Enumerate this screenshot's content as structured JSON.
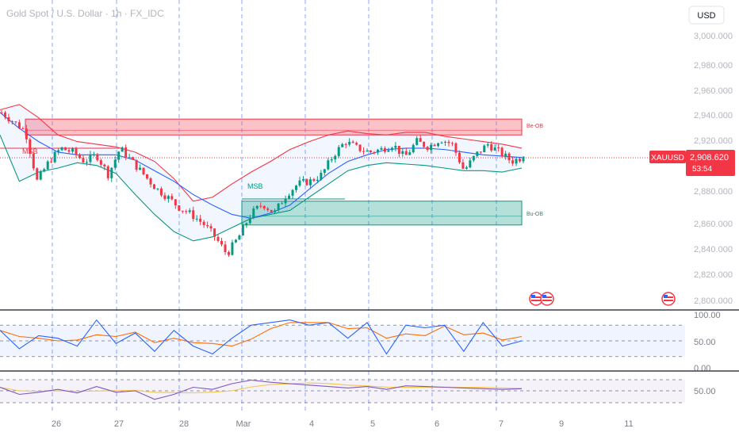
{
  "header": {
    "title": "Gold Spot / U.S. Dollar · 1h · FX_IDC",
    "currency_label": "USD"
  },
  "colors": {
    "up": "#089981",
    "down": "#f23645",
    "basis": "#2962ff",
    "upper": "#f23645",
    "lower": "#089981",
    "grid_v": "#2962ff",
    "stoch_k": "#2962ff",
    "stoch_d": "#ff6d00",
    "rsi": "#7e57c2",
    "rsi_ma": "#f7c548"
  },
  "price_axis": {
    "ticks": [
      "3,000.000",
      "2,980.000",
      "2,960.000",
      "2,940.000",
      "2,920.000",
      "2,900.000",
      "2,880.000",
      "2,860.000",
      "2,840.000",
      "2,820.000",
      "2,800.000"
    ],
    "range": [
      2793,
      3008
    ]
  },
  "x_axis": {
    "labels": [
      "26",
      "27",
      "28",
      "Mar",
      "4",
      "5",
      "6",
      "7",
      "9",
      "11"
    ]
  },
  "price_badge": {
    "symbol": "XAUUSD",
    "price": "2,908.620",
    "countdown": "53:54",
    "value": 2908.62
  },
  "zones": [
    {
      "label": "Be-OB",
      "top": 2937,
      "bottom": 2925,
      "color": "red"
    },
    {
      "label": "Bu-OB",
      "top": 2875,
      "bottom": 2857,
      "color": "green"
    }
  ],
  "annotations": {
    "msb_left": "MSB",
    "msb_mid": "MSB"
  },
  "stochastic": {
    "ticks": [
      "100.00",
      "50.00",
      "0.00"
    ]
  },
  "rsi": {
    "ticks": [
      "50.00"
    ]
  },
  "chart_data": {
    "type": "candlestick",
    "title": "Gold Spot / U.S. Dollar · 1h · FX_IDC",
    "symbol": "XAUUSD",
    "ylim": [
      2793,
      3008
    ],
    "x_labels": [
      "26",
      "27",
      "28",
      "Mar",
      "4",
      "5",
      "6",
      "7",
      "9",
      "11"
    ],
    "close_path": [
      [
        "Feb 25",
        2942
      ],
      [
        "Feb 25",
        2935
      ],
      [
        "Feb 25",
        2928
      ],
      [
        "Feb 25",
        2890
      ],
      [
        "Feb 26",
        2905
      ],
      [
        "Feb 26",
        2915
      ],
      [
        "Feb 26",
        2912
      ],
      [
        "Feb 26",
        2905
      ],
      [
        "Feb 26",
        2910
      ],
      [
        "Feb 26",
        2895
      ],
      [
        "Feb 27",
        2915
      ],
      [
        "Feb 27",
        2905
      ],
      [
        "Feb 27",
        2895
      ],
      [
        "Feb 27",
        2885
      ],
      [
        "Feb 27",
        2878
      ],
      [
        "Feb 27",
        2870
      ],
      [
        "Feb 28",
        2865
      ],
      [
        "Feb 28",
        2858
      ],
      [
        "Feb 28",
        2848
      ],
      [
        "Feb 28",
        2835
      ],
      [
        "Feb 28",
        2848
      ],
      [
        "Mar 3",
        2865
      ],
      [
        "Mar 3",
        2873
      ],
      [
        "Mar 3",
        2866
      ],
      [
        "Mar 3",
        2880
      ],
      [
        "Mar 3",
        2888
      ],
      [
        "Mar 4",
        2890
      ],
      [
        "Mar 4",
        2895
      ],
      [
        "Mar 4",
        2910
      ],
      [
        "Mar 4",
        2920
      ],
      [
        "Mar 5",
        2915
      ],
      [
        "Mar 5",
        2912
      ],
      [
        "Mar 5",
        2914
      ],
      [
        "Mar 5",
        2918
      ],
      [
        "Mar 5",
        2908
      ],
      [
        "Mar 5",
        2920
      ],
      [
        "Mar 6",
        2916
      ],
      [
        "Mar 6",
        2922
      ],
      [
        "Mar 6",
        2918
      ],
      [
        "Mar 6",
        2898
      ],
      [
        "Mar 6",
        2910
      ],
      [
        "Mar 7",
        2918
      ],
      [
        "Mar 7",
        2912
      ],
      [
        "Mar 7",
        2905
      ],
      [
        "Mar 7",
        2908.62
      ]
    ],
    "bollinger": {
      "basis": [
        2942,
        2930,
        2920,
        2912,
        2910,
        2910,
        2910,
        2906,
        2898,
        2890,
        2880,
        2872,
        2865,
        2862,
        2866,
        2872,
        2884,
        2896,
        2905,
        2910,
        2914,
        2915,
        2915,
        2914,
        2912,
        2910,
        2909,
        2908
      ],
      "upper": [
        2944,
        2948,
        2938,
        2925,
        2920,
        2918,
        2916,
        2912,
        2905,
        2892,
        2875,
        2878,
        2888,
        2897,
        2905,
        2914,
        2920,
        2925,
        2928,
        2926,
        2925,
        2927,
        2927,
        2924,
        2922,
        2920,
        2918,
        2915
      ],
      "lower": [
        2925,
        2890,
        2897,
        2900,
        2904,
        2902,
        2896,
        2880,
        2865,
        2852,
        2845,
        2848,
        2855,
        2862,
        2865,
        2868,
        2878,
        2888,
        2898,
        2902,
        2904,
        2903,
        2902,
        2900,
        2898,
        2898,
        2897,
        2900
      ]
    },
    "indicators": {
      "stochastic_ylim": [
        0,
        100
      ],
      "stochastic_k": [
        70,
        35,
        60,
        55,
        40,
        90,
        45,
        65,
        30,
        70,
        40,
        25,
        55,
        80,
        85,
        90,
        80,
        85,
        55,
        85,
        25,
        80,
        75,
        80,
        30,
        85,
        40,
        50
      ],
      "rsi_ylim": [
        0,
        100
      ],
      "rsi": [
        55,
        45,
        48,
        52,
        47,
        56,
        48,
        50,
        38,
        45,
        55,
        52,
        60,
        65,
        62,
        60,
        58,
        56,
        54,
        56,
        52,
        57,
        56,
        55,
        54,
        53,
        52,
        53
      ]
    }
  }
}
